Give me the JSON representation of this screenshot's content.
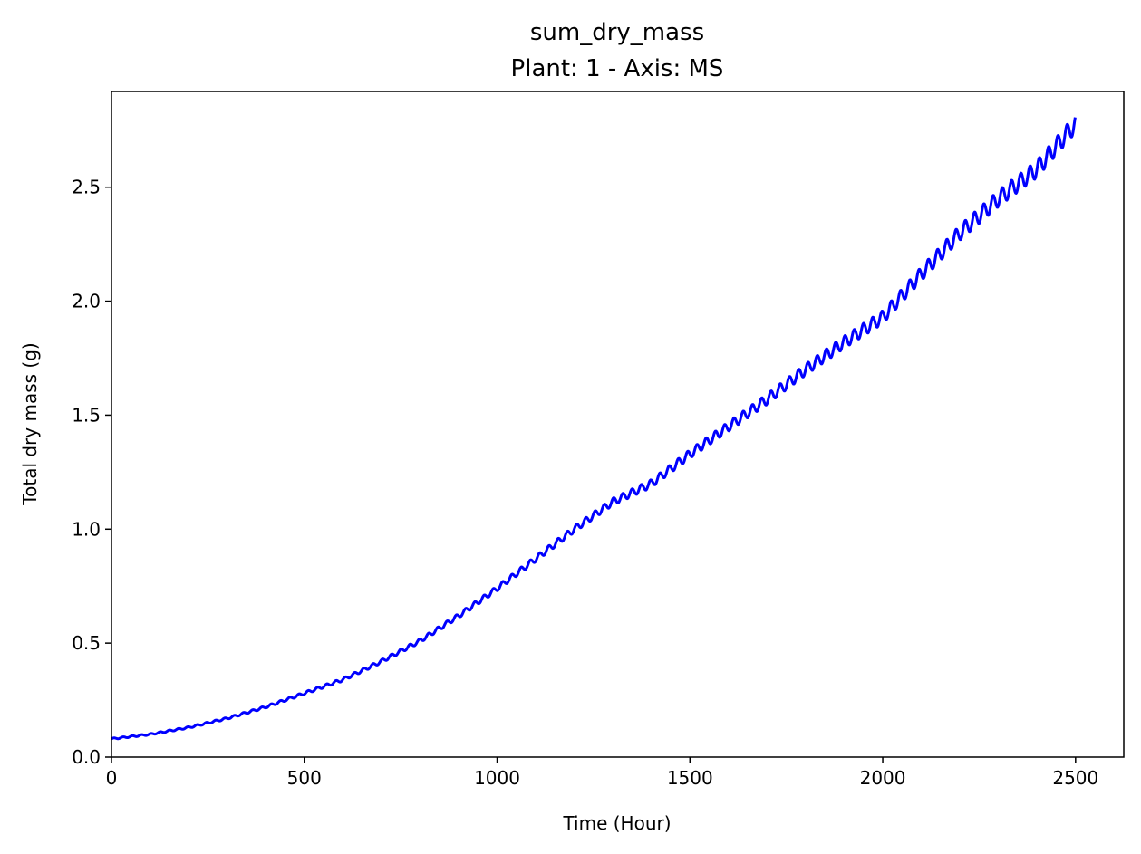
{
  "chart_data": {
    "type": "line",
    "title": "sum_dry_mass",
    "subtitle": "Plant: 1 - Axis: MS",
    "xlabel": "Time (Hour)",
    "ylabel": "Total dry mass (g)",
    "xlim": [
      0,
      2625
    ],
    "ylim": [
      0,
      2.92
    ],
    "xticks": [
      0,
      500,
      1000,
      1500,
      2000,
      2500
    ],
    "yticks": [
      0.0,
      0.5,
      1.0,
      1.5,
      2.0,
      2.5
    ],
    "xtick_labels": [
      "0",
      "500",
      "1000",
      "1500",
      "2000",
      "2500"
    ],
    "ytick_labels": [
      "0.0",
      "0.5",
      "1.0",
      "1.5",
      "2.0",
      "2.5"
    ],
    "grid": false,
    "legend": "none",
    "line_color": "#0000ff",
    "series": [
      {
        "x": [
          0,
          100,
          200,
          300,
          400,
          500,
          600,
          700,
          800,
          900,
          1000,
          1100,
          1200,
          1300,
          1400,
          1500,
          1600,
          1700,
          1800,
          1900,
          2000,
          2100,
          2200,
          2300,
          2400,
          2500
        ],
        "values": [
          0.08,
          0.1,
          0.13,
          0.17,
          0.22,
          0.28,
          0.34,
          0.42,
          0.51,
          0.62,
          0.74,
          0.87,
          1.0,
          1.12,
          1.2,
          1.33,
          1.45,
          1.57,
          1.7,
          1.82,
          1.93,
          2.12,
          2.3,
          2.45,
          2.58,
          2.78
        ],
        "oscillation_period_hours": 24,
        "oscillation_amplitude": [
          0.003,
          0.04
        ]
      }
    ]
  }
}
